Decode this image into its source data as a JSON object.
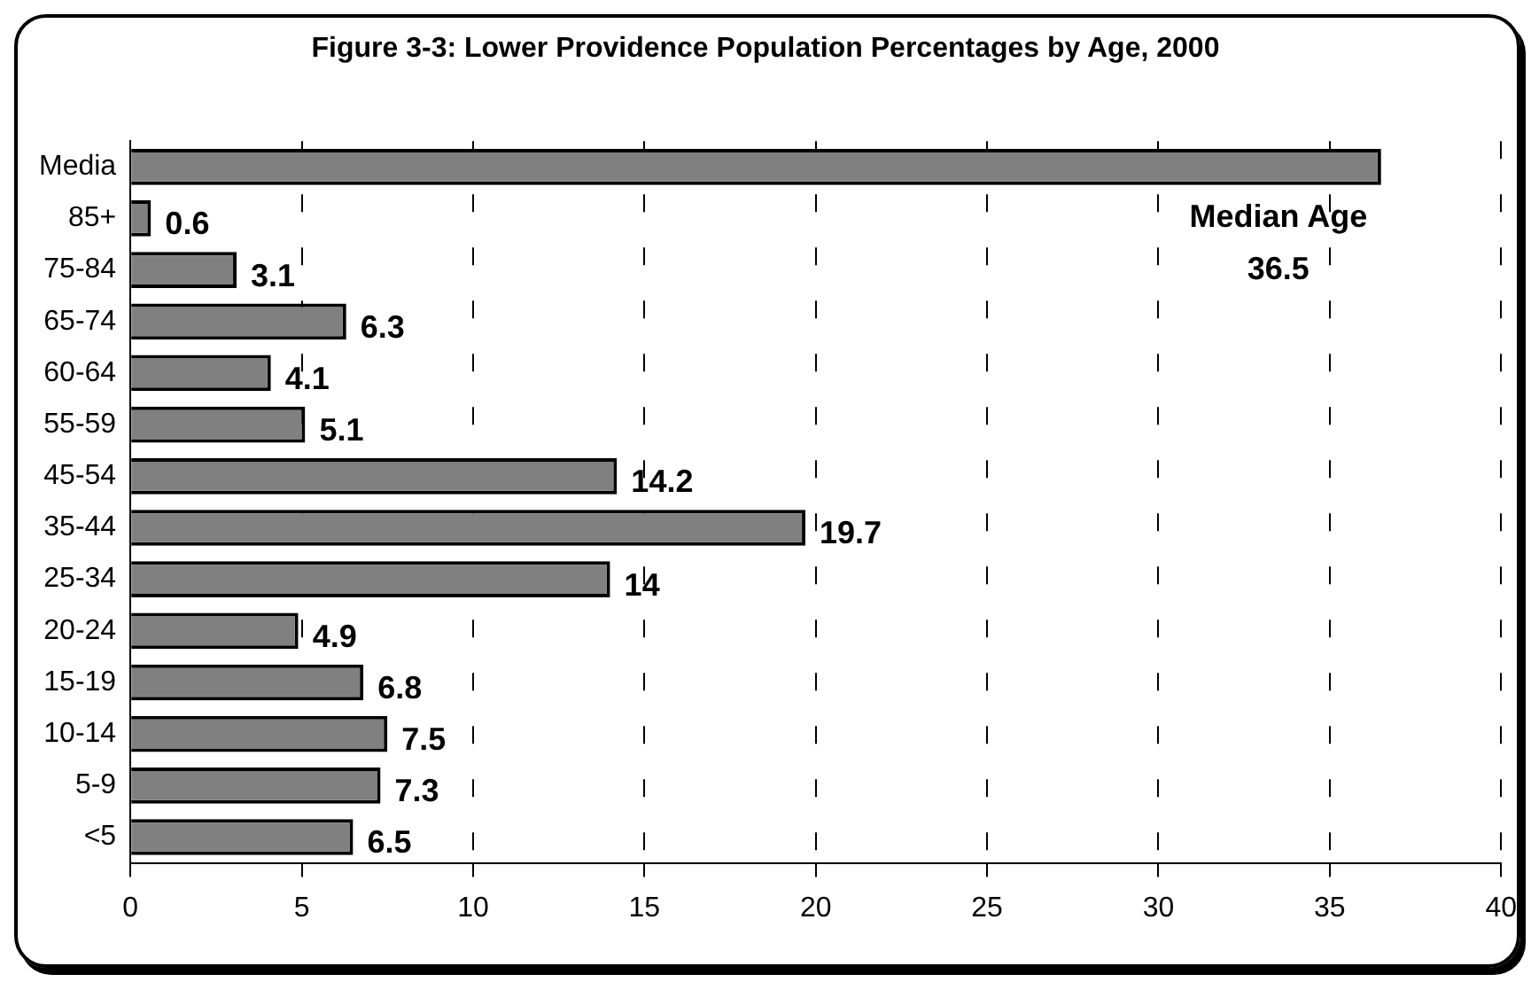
{
  "chart_data": {
    "type": "bar",
    "orientation": "horizontal",
    "title": "Figure 3-3: Lower Providence Population Percentages by Age, 2000",
    "categories": [
      "Media",
      "85+",
      "75-84",
      "65-74",
      "60-64",
      "55-59",
      "45-54",
      "35-44",
      "25-34",
      "20-24",
      "15-19",
      "10-14",
      "5-9",
      "<5"
    ],
    "values": [
      36.5,
      0.6,
      3.1,
      6.3,
      4.1,
      5.1,
      14.2,
      19.7,
      14,
      4.9,
      6.8,
      7.5,
      7.3,
      6.5
    ],
    "value_labels": [
      null,
      "0.6",
      "3.1",
      "6.3",
      "4.1",
      "5.1",
      "14.2",
      "19.7",
      "14",
      "4.9",
      "6.8",
      "7.5",
      "7.3",
      "6.5"
    ],
    "color": "#808080",
    "annotations": [
      "Median Age",
      "36.5"
    ],
    "xlim": [
      0,
      40
    ],
    "xticks": [
      0,
      5,
      10,
      15,
      20,
      25,
      30,
      35,
      40
    ],
    "grid": "x",
    "legend": false
  }
}
